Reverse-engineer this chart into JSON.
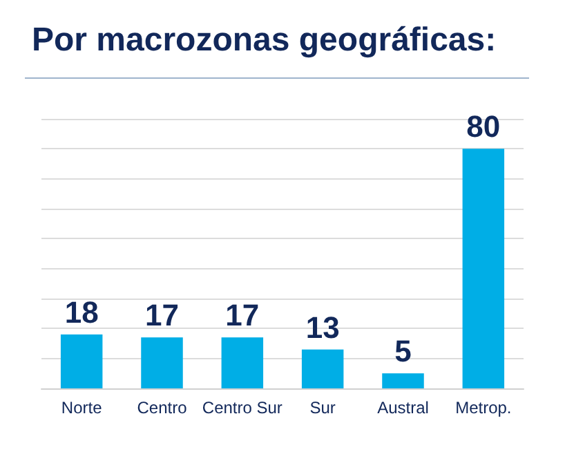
{
  "chart_data": {
    "type": "bar",
    "title": "Por macrozonas geográficas:",
    "categories": [
      "Norte",
      "Centro",
      "Centro Sur",
      "Sur",
      "Austral",
      "Metrop."
    ],
    "values": [
      18,
      17,
      17,
      13,
      5,
      80
    ],
    "color": "#00aee6",
    "ylim": [
      0,
      90
    ],
    "yticks": [
      {
        "value": 0,
        "label": null
      },
      {
        "value": 10,
        "label": null
      },
      {
        "value": 20,
        "label": null
      },
      {
        "value": 30,
        "label": null
      },
      {
        "value": 40,
        "label": null
      },
      {
        "value": 50,
        "label": null
      },
      {
        "value": 60,
        "label": null
      },
      {
        "value": 70,
        "label": null
      },
      {
        "value": 80,
        "label": null
      },
      {
        "value": 90,
        "label": null
      }
    ],
    "grid": "y",
    "data_labels": true,
    "tick_labels": "x"
  }
}
